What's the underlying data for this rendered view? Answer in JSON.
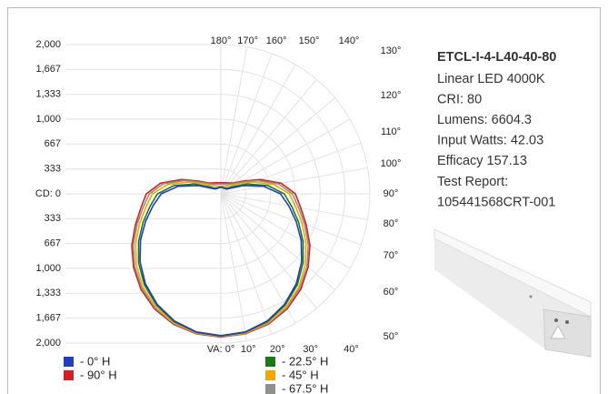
{
  "chart_data": {
    "type": "polar",
    "angles": [
      0,
      10,
      20,
      30,
      40,
      50,
      60,
      70,
      80,
      90,
      100,
      110,
      120,
      130,
      140,
      150,
      160,
      170,
      180
    ],
    "series": [
      {
        "name": "- 90° H",
        "color": "#d42020",
        "values": [
          1920,
          1905,
          1860,
          1780,
          1670,
          1530,
          1380,
          1220,
          1090,
          1000,
          820,
          560,
          340,
          230,
          190,
          170,
          160,
          150,
          150
        ]
      },
      {
        "name": "- 67.5° H",
        "color": "#909090",
        "values": [
          1915,
          1900,
          1850,
          1765,
          1650,
          1510,
          1355,
          1195,
          1060,
          960,
          780,
          520,
          310,
          210,
          170,
          150,
          140,
          130,
          130
        ]
      },
      {
        "name": "- 45° H",
        "color": "#f0a800",
        "values": [
          1910,
          1895,
          1840,
          1750,
          1630,
          1480,
          1320,
          1160,
          1020,
          920,
          720,
          460,
          260,
          170,
          140,
          120,
          110,
          100,
          100
        ]
      },
      {
        "name": "- 22.5° H",
        "color": "#1a7a1a",
        "values": [
          1905,
          1885,
          1825,
          1725,
          1595,
          1440,
          1275,
          1110,
          965,
          850,
          640,
          380,
          190,
          120,
          100,
          90,
          90,
          90,
          90
        ]
      },
      {
        "name": "- 0° H",
        "color": "#1f3fbf",
        "values": [
          1900,
          1880,
          1815,
          1710,
          1575,
          1415,
          1245,
          1075,
          925,
          800,
          580,
          320,
          150,
          100,
          90,
          85,
          85,
          85,
          85
        ]
      }
    ],
    "rlim": [
      0,
      2000
    ],
    "rticks": [
      {
        "value": 0,
        "label": "CD: 0"
      },
      333,
      667,
      {
        "value": 1000,
        "label": "1,000"
      },
      {
        "value": 1333,
        "label": "1,333"
      },
      {
        "value": 1667,
        "label": "1,667"
      },
      {
        "value": 2000,
        "label": "2,000"
      }
    ],
    "angle_ticks": [
      {
        "value": 0,
        "label": "VA: 0°"
      },
      {
        "value": 10,
        "label": "10°"
      },
      {
        "value": 20,
        "label": "20°"
      },
      {
        "value": 30,
        "label": "30°"
      },
      {
        "value": 40,
        "label": "40°"
      },
      {
        "value": 50,
        "label": "50°"
      },
      {
        "value": 60,
        "label": "60°"
      },
      {
        "value": 70,
        "label": "70°"
      },
      {
        "value": 80,
        "label": "80°"
      },
      {
        "value": 90,
        "label": "90°"
      },
      {
        "value": 100,
        "label": "100°"
      },
      {
        "value": 110,
        "label": "110°"
      },
      {
        "value": 120,
        "label": "120°"
      },
      {
        "value": 130,
        "label": "130°"
      },
      {
        "value": 140,
        "label": "140°"
      },
      {
        "value": 150,
        "label": "150°"
      },
      {
        "value": 160,
        "label": "160°"
      },
      {
        "value": 170,
        "label": "170°"
      },
      {
        "value": 180,
        "label": "180°"
      }
    ],
    "grid": true
  },
  "product": {
    "title": "ETCL-I-4-L40-40-80",
    "specs": [
      "Linear LED 4000K",
      "CRI: 80",
      "Lumens: 6604.3",
      "Input Watts: 42.03",
      "Efficacy 157.13",
      "Test Report:",
      "105441568CRT-001"
    ]
  }
}
